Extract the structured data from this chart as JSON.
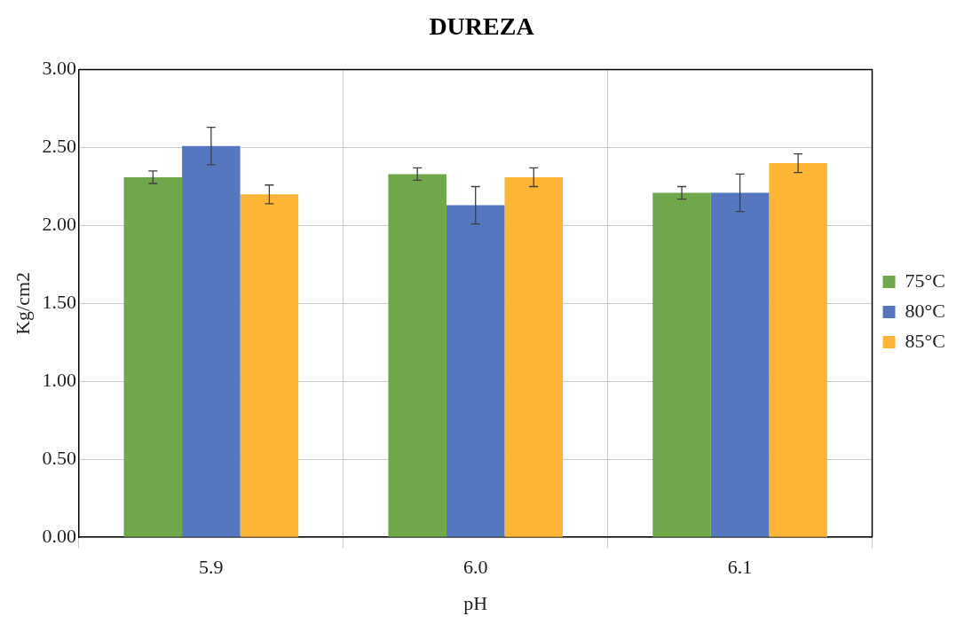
{
  "chart_data": {
    "type": "bar",
    "title": "DUREZA",
    "xlabel": "pH",
    "ylabel": "Kg/cm2",
    "categories": [
      "5.9",
      "6.0",
      "6.1"
    ],
    "series": [
      {
        "name": "75°C",
        "color": "#70a74b",
        "values": [
          2.31,
          2.33,
          2.21
        ],
        "errors": [
          0.04,
          0.04,
          0.04
        ]
      },
      {
        "name": "80°C",
        "color": "#5577bf",
        "values": [
          2.51,
          2.13,
          2.21
        ],
        "errors": [
          0.12,
          0.12,
          0.12
        ]
      },
      {
        "name": "85°C",
        "color": "#fcb534",
        "values": [
          2.2,
          2.31,
          2.4
        ],
        "errors": [
          0.06,
          0.06,
          0.06
        ]
      }
    ],
    "ylim": [
      0,
      3
    ],
    "yticks": [
      {
        "value": 0,
        "label": "0.00"
      },
      {
        "value": 0.5,
        "label": "0.50"
      },
      {
        "value": 1,
        "label": "1.00"
      },
      {
        "value": 1.5,
        "label": "1.50"
      },
      {
        "value": 2,
        "label": "2.00"
      },
      {
        "value": 2.5,
        "label": "2.50"
      },
      {
        "value": 3,
        "label": "3.00"
      }
    ],
    "grid": true,
    "legend": "right"
  }
}
